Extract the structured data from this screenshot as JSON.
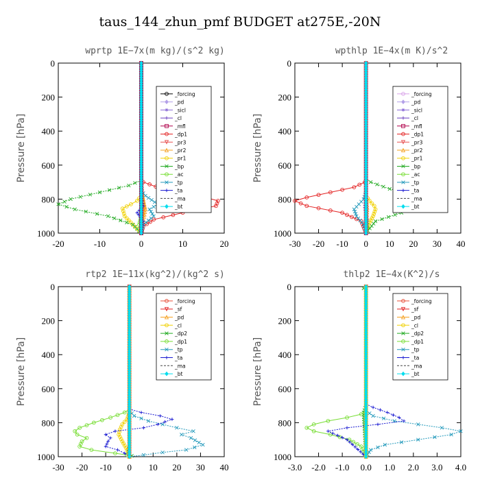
{
  "figure": {
    "title": "taus_144_zhun_pmf  BUDGET at275E,-20N"
  },
  "chart_data": [
    {
      "type": "line",
      "title": "wprtp  1E−7x(m kg)/(s^2 kg)",
      "xlabel": "",
      "ylabel": "Pressure [hPa]",
      "xlim": [
        -20,
        20
      ],
      "ylim": [
        1000,
        0
      ],
      "y_inverted": true,
      "xticks": [
        "-20",
        "-10",
        "0",
        "10",
        "20"
      ],
      "yticks": [
        "0",
        "200",
        "400",
        "600",
        "800",
        "1000"
      ],
      "legend_position": "top-right",
      "series": [
        {
          "name": "_forcing",
          "color": "#000000",
          "marker": "o",
          "x": [
            0,
            0
          ],
          "y": [
            0,
            1000
          ]
        },
        {
          "name": "_pd",
          "color": "#b3a0e8",
          "marker": "d",
          "x": [
            0,
            0
          ],
          "y": [
            0,
            1000
          ]
        },
        {
          "name": "_sicl",
          "color": "#8a6ad8",
          "marker": "*",
          "x": [
            0,
            0
          ],
          "y": [
            0,
            1000
          ]
        },
        {
          "name": "_cl",
          "color": "#6a3fc0",
          "marker": "+",
          "x": [
            0,
            0
          ],
          "y": [
            0,
            1000
          ]
        },
        {
          "name": "_mfl",
          "color": "#b0004a",
          "marker": "s",
          "x": [
            0,
            0
          ],
          "y": [
            0,
            1000
          ]
        },
        {
          "name": "_dp1",
          "color": "#e32222",
          "marker": "o",
          "x": [
            0,
            0,
            0.5,
            5,
            14,
            18.5,
            18,
            10,
            3,
            0.5,
            0
          ],
          "y": [
            0,
            690,
            700,
            740,
            780,
            810,
            840,
            880,
            920,
            960,
            1000
          ]
        },
        {
          "name": "_pr3",
          "color": "#e85050",
          "marker": "v",
          "x": [
            0,
            0,
            0.5,
            0,
            0
          ],
          "y": [
            0,
            700,
            850,
            950,
            1000
          ]
        },
        {
          "name": "_pr2",
          "color": "#f5a020",
          "marker": "^",
          "x": [
            0,
            0,
            0.5,
            1,
            0.5,
            0
          ],
          "y": [
            0,
            750,
            800,
            860,
            920,
            1000
          ]
        },
        {
          "name": "_pr1",
          "color": "#f0d000",
          "marker": "o",
          "x": [
            0,
            0,
            -1,
            -2.5,
            -4.5,
            -4,
            -2,
            0
          ],
          "y": [
            0,
            780,
            810,
            830,
            855,
            900,
            950,
            1000
          ]
        },
        {
          "name": "_bp",
          "color": "#22aa22",
          "marker": "x",
          "x": [
            0,
            0,
            -3,
            -10,
            -17,
            -20,
            -16,
            -8,
            -2,
            0
          ],
          "y": [
            0,
            690,
            720,
            760,
            800,
            830,
            860,
            900,
            950,
            1000
          ]
        },
        {
          "name": "_ac",
          "color": "#77dd33",
          "marker": "o",
          "x": [
            0,
            0,
            -0.5,
            0,
            0
          ],
          "y": [
            0,
            900,
            950,
            980,
            1000
          ]
        },
        {
          "name": "_tp",
          "color": "#2299bb",
          "marker": "x",
          "x": [
            0,
            0,
            1,
            4,
            2,
            3,
            0.5,
            0
          ],
          "y": [
            0,
            750,
            780,
            830,
            860,
            900,
            950,
            1000
          ]
        },
        {
          "name": "_ta",
          "color": "#1515d0",
          "marker": "+",
          "x": [
            0,
            0,
            0.5,
            -1,
            0.5,
            0
          ],
          "y": [
            0,
            780,
            840,
            880,
            930,
            1000
          ]
        },
        {
          "name": "_ma",
          "color": "#444444",
          "marker": "-",
          "x": [
            0,
            0
          ],
          "y": [
            0,
            1000
          ]
        },
        {
          "name": "_bt",
          "color": "#00ddee",
          "marker": "d",
          "x": [
            0,
            0
          ],
          "y": [
            0,
            1000
          ]
        }
      ]
    },
    {
      "type": "line",
      "title": "wpthlp  1E−4x(m K)/s^2",
      "xlabel": "",
      "ylabel": "Pressure [hPa]",
      "xlim": [
        -30,
        40
      ],
      "ylim": [
        1000,
        0
      ],
      "y_inverted": true,
      "xticks": [
        "-30",
        "-20",
        "-10",
        "0",
        "10",
        "20",
        "30",
        "40"
      ],
      "yticks": [
        "0",
        "200",
        "400",
        "600",
        "800",
        "1000"
      ],
      "legend_position": "top-right",
      "series": [
        {
          "name": "_forcing",
          "color": "#d8a0e8",
          "marker": "o",
          "x": [
            0,
            0
          ],
          "y": [
            0,
            1000
          ]
        },
        {
          "name": "_pd",
          "color": "#b3a0e8",
          "marker": "d",
          "x": [
            0,
            0
          ],
          "y": [
            0,
            1000
          ]
        },
        {
          "name": "_sicl",
          "color": "#8a6ad8",
          "marker": "*",
          "x": [
            0,
            0
          ],
          "y": [
            0,
            1000
          ]
        },
        {
          "name": "_cl",
          "color": "#6a3fc0",
          "marker": "+",
          "x": [
            0,
            0
          ],
          "y": [
            0,
            1000
          ]
        },
        {
          "name": "_mfl",
          "color": "#b0004a",
          "marker": "s",
          "x": [
            0,
            0
          ],
          "y": [
            0,
            1000
          ]
        },
        {
          "name": "_dp1",
          "color": "#e32222",
          "marker": "o",
          "x": [
            0,
            0,
            -0.5,
            -5,
            -15,
            -25,
            -30,
            -25,
            -10,
            -2,
            0
          ],
          "y": [
            0,
            690,
            700,
            730,
            760,
            790,
            810,
            840,
            880,
            930,
            1000
          ]
        },
        {
          "name": "_pr3",
          "color": "#e85050",
          "marker": "v",
          "x": [
            0,
            0,
            0,
            0
          ],
          "y": [
            0,
            700,
            850,
            1000
          ]
        },
        {
          "name": "_pr2",
          "color": "#f5a020",
          "marker": "^",
          "x": [
            0,
            0,
            0.5,
            0
          ],
          "y": [
            0,
            760,
            850,
            1000
          ]
        },
        {
          "name": "_pr1",
          "color": "#f0d000",
          "marker": "o",
          "x": [
            0,
            0,
            1.5,
            3.5,
            4,
            3,
            1,
            0
          ],
          "y": [
            0,
            780,
            810,
            840,
            860,
            900,
            950,
            1000
          ]
        },
        {
          "name": "_bp",
          "color": "#22aa22",
          "marker": "x",
          "x": [
            0,
            0,
            2,
            10,
            22,
            31,
            28,
            15,
            4,
            0
          ],
          "y": [
            0,
            680,
            700,
            740,
            780,
            805,
            840,
            880,
            930,
            1000
          ]
        },
        {
          "name": "_ac",
          "color": "#77dd33",
          "marker": "o",
          "x": [
            0,
            0,
            0.5,
            0
          ],
          "y": [
            0,
            900,
            960,
            1000
          ]
        },
        {
          "name": "_tp",
          "color": "#2299bb",
          "marker": "x",
          "x": [
            0,
            0,
            -1,
            -3,
            -5,
            -4,
            -1,
            0
          ],
          "y": [
            0,
            760,
            800,
            830,
            860,
            900,
            950,
            1000
          ]
        },
        {
          "name": "_ta",
          "color": "#1515d0",
          "marker": "+",
          "x": [
            0,
            0,
            -0.5,
            0.5,
            0
          ],
          "y": [
            0,
            780,
            850,
            920,
            1000
          ]
        },
        {
          "name": "_ma",
          "color": "#444444",
          "marker": "-",
          "x": [
            0,
            0
          ],
          "y": [
            0,
            1000
          ]
        },
        {
          "name": "_bt",
          "color": "#00ddee",
          "marker": "d",
          "x": [
            0,
            0
          ],
          "y": [
            0,
            1000
          ]
        }
      ]
    },
    {
      "type": "line",
      "title": "rtp2  1E−11x(kg^2)/(kg^2 s)",
      "xlabel": "",
      "ylabel": "Pressure [hPa]",
      "xlim": [
        -30,
        40
      ],
      "ylim": [
        1000,
        0
      ],
      "y_inverted": true,
      "xticks": [
        "-30",
        "-20",
        "-10",
        "0",
        "10",
        "20",
        "30",
        "40"
      ],
      "yticks": [
        "0",
        "200",
        "400",
        "600",
        "800",
        "1000"
      ],
      "legend_position": "top-right",
      "series": [
        {
          "name": "_forcing",
          "color": "#e8503a",
          "marker": "o",
          "x": [
            0,
            0
          ],
          "y": [
            0,
            1000
          ]
        },
        {
          "name": "_sf",
          "color": "#e32222",
          "marker": "v",
          "x": [
            0,
            0
          ],
          "y": [
            0,
            1000
          ]
        },
        {
          "name": "_pd",
          "color": "#f5a020",
          "marker": "^",
          "x": [
            0,
            0
          ],
          "y": [
            0,
            1000
          ]
        },
        {
          "name": "_cl",
          "color": "#f0d000",
          "marker": "o",
          "x": [
            0,
            0,
            -1,
            -3,
            -4,
            -4.5,
            -3,
            -1,
            0
          ],
          "y": [
            0,
            740,
            780,
            810,
            840,
            870,
            910,
            960,
            1000
          ]
        },
        {
          "name": "_dp2",
          "color": "#22aa22",
          "marker": "x",
          "x": [
            0,
            0,
            -0.5,
            0,
            1,
            0
          ],
          "y": [
            0,
            940,
            970,
            990,
            995,
            1000
          ]
        },
        {
          "name": "_dp1",
          "color": "#77dd33",
          "marker": "o",
          "x": [
            0,
            0,
            -2,
            -8,
            -15,
            -21,
            -23,
            -22,
            -18,
            -20,
            -21,
            -16,
            -6,
            -1,
            0
          ],
          "y": [
            0,
            720,
            740,
            770,
            800,
            830,
            850,
            870,
            890,
            910,
            940,
            960,
            980,
            990,
            1000
          ]
        },
        {
          "name": "_tp",
          "color": "#2299bb",
          "marker": "x",
          "x": [
            0,
            0,
            2,
            8,
            14,
            20,
            27,
            22,
            26,
            31,
            24,
            14,
            6,
            0
          ],
          "y": [
            0,
            730,
            760,
            790,
            810,
            830,
            850,
            870,
            890,
            930,
            960,
            975,
            990,
            1000
          ]
        },
        {
          "name": "_ta",
          "color": "#1515d0",
          "marker": "+",
          "x": [
            0,
            0,
            5,
            13,
            18,
            12,
            6,
            -6,
            -10,
            -8,
            -9,
            -10,
            -5,
            -2,
            0
          ],
          "y": [
            0,
            720,
            740,
            760,
            780,
            810,
            830,
            850,
            870,
            890,
            910,
            940,
            960,
            980,
            1000
          ]
        },
        {
          "name": "_ma",
          "color": "#444444",
          "marker": "-",
          "x": [
            0,
            0
          ],
          "y": [
            0,
            1000
          ]
        },
        {
          "name": "_bt",
          "color": "#00ddee",
          "marker": "d",
          "x": [
            0,
            0
          ],
          "y": [
            0,
            1000
          ]
        }
      ]
    },
    {
      "type": "line",
      "title": "thlp2  1E−4x(K^2)/s",
      "xlabel": "",
      "ylabel": "Pressure [hPa]",
      "xlim": [
        -3,
        4
      ],
      "ylim": [
        1000,
        0
      ],
      "y_inverted": true,
      "xticks": [
        "-3.0",
        "-2.0",
        "-1.0",
        "0.0",
        "1.0",
        "2.0",
        "3.0",
        "4.0"
      ],
      "yticks": [
        "0",
        "200",
        "400",
        "600",
        "800",
        "1000"
      ],
      "legend_position": "top-right",
      "series": [
        {
          "name": "_forcing",
          "color": "#e8503a",
          "marker": "o",
          "x": [
            0,
            0
          ],
          "y": [
            0,
            1000
          ]
        },
        {
          "name": "_sf",
          "color": "#e32222",
          "marker": "v",
          "x": [
            0,
            0
          ],
          "y": [
            0,
            1000
          ]
        },
        {
          "name": "_pd",
          "color": "#f5a020",
          "marker": "^",
          "x": [
            0,
            0
          ],
          "y": [
            0,
            1000
          ]
        },
        {
          "name": "_cl",
          "color": "#f0d000",
          "marker": "o",
          "x": [
            0,
            0
          ],
          "y": [
            0,
            1000
          ]
        },
        {
          "name": "_dp2",
          "color": "#22aa22",
          "marker": "x",
          "x": [
            0,
            -0.1,
            0,
            0,
            -0.1,
            0
          ],
          "y": [
            0,
            10,
            20,
            700,
            740,
            1000
          ]
        },
        {
          "name": "_dp1",
          "color": "#77dd33",
          "marker": "o",
          "x": [
            0,
            0,
            -0.2,
            -0.8,
            -1.6,
            -2.2,
            -2.5,
            -2.2,
            -1.5,
            -0.7,
            -0.2,
            0
          ],
          "y": [
            0,
            730,
            750,
            770,
            790,
            810,
            830,
            850,
            870,
            900,
            940,
            1000
          ]
        },
        {
          "name": "_tp",
          "color": "#2299bb",
          "marker": "x",
          "x": [
            0,
            0,
            0.3,
            1.2,
            2.2,
            3.2,
            4.0,
            3.6,
            2.2,
            0.8,
            0.2,
            0
          ],
          "y": [
            0,
            730,
            760,
            790,
            810,
            830,
            850,
            870,
            900,
            930,
            960,
            1000
          ]
        },
        {
          "name": "_ta",
          "color": "#1515d0",
          "marker": "+",
          "x": [
            0,
            0,
            0.3,
            0.9,
            1.4,
            1.6,
            0.5,
            -0.8,
            -1.6,
            -0.8,
            0
          ],
          "y": [
            0,
            690,
            710,
            740,
            770,
            790,
            810,
            830,
            850,
            900,
            1000
          ]
        },
        {
          "name": "_ma",
          "color": "#444444",
          "marker": "-",
          "x": [
            0,
            0
          ],
          "y": [
            0,
            1000
          ]
        },
        {
          "name": "_bt",
          "color": "#00ddee",
          "marker": "d",
          "x": [
            0,
            0
          ],
          "y": [
            0,
            1000
          ]
        }
      ]
    }
  ]
}
